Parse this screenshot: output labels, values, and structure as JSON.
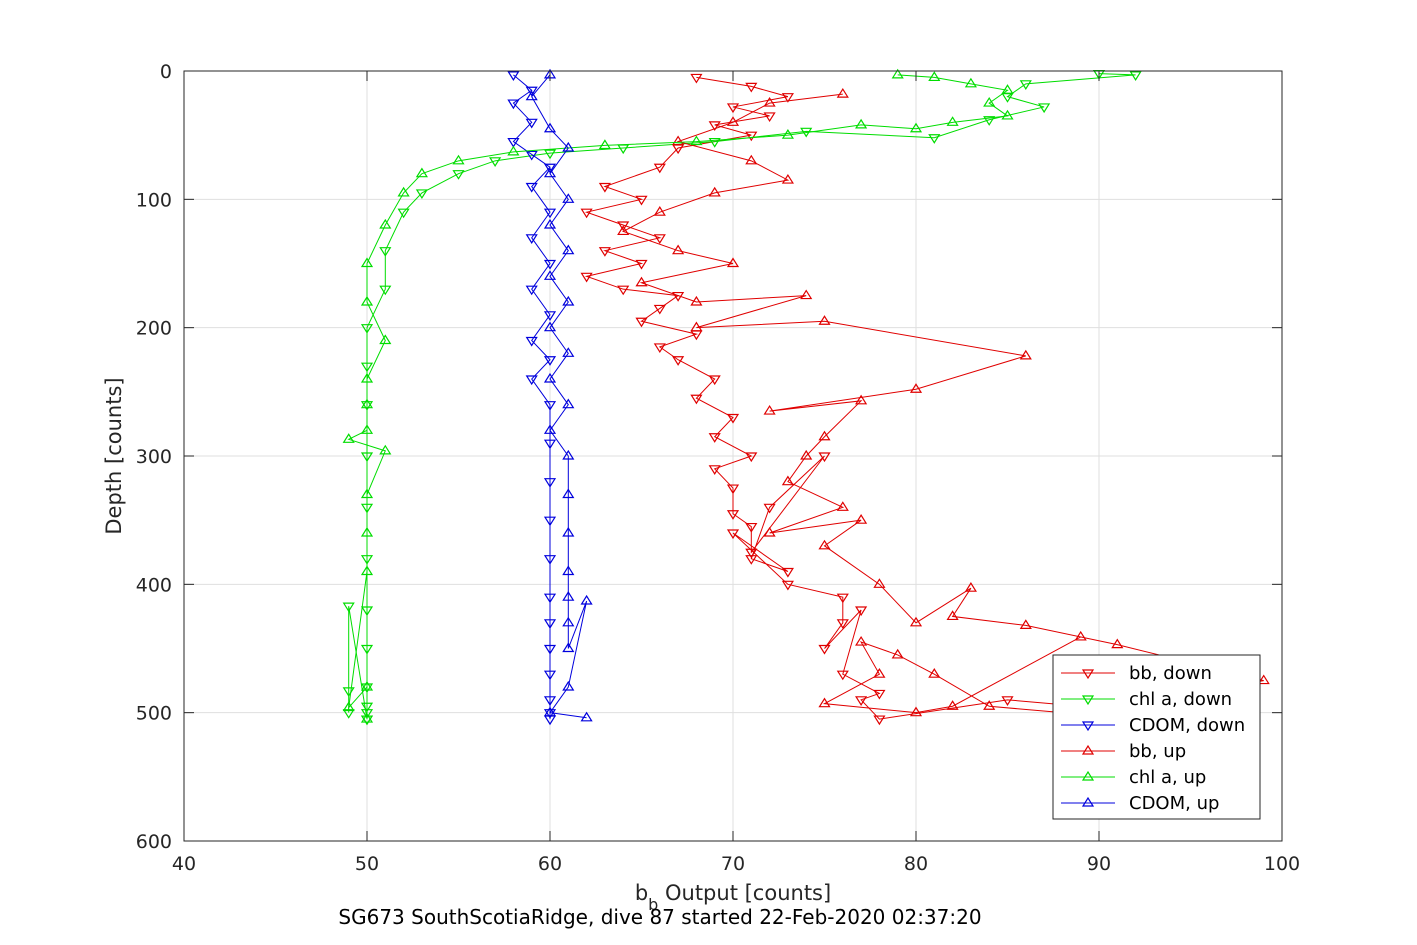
{
  "chart_data": {
    "type": "line",
    "xlabel_main": "b",
    "xlabel_sub": "b",
    "xlabel_rest": " Output [counts]",
    "ylabel": "Depth [counts]",
    "title": "SG673 SouthScotiaRidge, dive 87 started 22-Feb-2020 02:37:20",
    "xlim": [
      40,
      100
    ],
    "ylim": [
      0,
      600
    ],
    "y_reversed": true,
    "grid": true,
    "xticks": [
      "40",
      "50",
      "60",
      "70",
      "80",
      "90",
      "100"
    ],
    "yticks": [
      "0",
      "100",
      "200",
      "300",
      "400",
      "500",
      "600"
    ],
    "legend_position": "bottom-right",
    "series": [
      {
        "name": "bb, down",
        "color": "#e00000",
        "marker": "triangle-down",
        "x": [
          68,
          71,
          73,
          70,
          72,
          69,
          71,
          67,
          66,
          63,
          65,
          62,
          64,
          66,
          63,
          65,
          62,
          64,
          67,
          66,
          65,
          68,
          66,
          67,
          69,
          68,
          70,
          69,
          71,
          69,
          70,
          70,
          71,
          71,
          75,
          72,
          71,
          73,
          70,
          73,
          76,
          76,
          75,
          77,
          76,
          78,
          77,
          78,
          85,
          89
        ],
        "y": [
          5,
          12,
          20,
          28,
          35,
          42,
          50,
          60,
          75,
          90,
          100,
          110,
          120,
          130,
          140,
          150,
          160,
          170,
          175,
          185,
          195,
          205,
          215,
          225,
          240,
          255,
          270,
          285,
          300,
          310,
          325,
          345,
          355,
          375,
          300,
          340,
          380,
          390,
          360,
          400,
          410,
          430,
          450,
          420,
          470,
          485,
          490,
          505,
          490,
          495
        ]
      },
      {
        "name": "chl a, down",
        "color": "#00dd00",
        "marker": "triangle-down",
        "x": [
          90,
          92,
          86,
          85,
          87,
          84,
          81,
          74,
          69,
          64,
          60,
          57,
          55,
          53,
          52,
          51,
          51,
          50,
          50,
          50,
          50,
          50,
          50,
          50,
          50,
          50,
          50,
          50,
          50,
          50,
          49,
          49,
          49
        ],
        "y": [
          2,
          3,
          10,
          20,
          28,
          38,
          52,
          47,
          55,
          60,
          64,
          70,
          80,
          95,
          110,
          140,
          170,
          200,
          230,
          260,
          300,
          340,
          380,
          420,
          450,
          480,
          495,
          500,
          505,
          505,
          417,
          483,
          500
        ]
      },
      {
        "name": "CDOM, down",
        "color": "#0000dd",
        "marker": "triangle-down",
        "x": [
          58,
          59,
          58,
          59,
          58,
          59,
          60,
          59,
          60,
          59,
          60,
          59,
          60,
          59,
          60,
          59,
          60,
          60,
          60,
          60,
          60,
          60,
          60,
          60,
          60,
          60,
          60,
          60
        ],
        "y": [
          3,
          15,
          25,
          40,
          55,
          65,
          75,
          90,
          110,
          130,
          150,
          170,
          190,
          210,
          225,
          240,
          260,
          290,
          320,
          350,
          380,
          410,
          430,
          450,
          470,
          490,
          500,
          505
        ]
      },
      {
        "name": "bb, up",
        "color": "#e00000",
        "marker": "triangle-up",
        "x": [
          76,
          72,
          70,
          67,
          71,
          73,
          69,
          66,
          64,
          67,
          70,
          65,
          68,
          74,
          68,
          75,
          86,
          80,
          72,
          77,
          75,
          74,
          73,
          76,
          72,
          77,
          75,
          78,
          80,
          83,
          82,
          86,
          91,
          99,
          95,
          92,
          88,
          84,
          81,
          79,
          77,
          78,
          75,
          80,
          82,
          89
        ],
        "y": [
          18,
          25,
          40,
          55,
          70,
          85,
          95,
          110,
          125,
          140,
          150,
          165,
          180,
          175,
          200,
          195,
          222,
          248,
          265,
          257,
          285,
          300,
          320,
          340,
          360,
          350,
          370,
          400,
          430,
          403,
          425,
          432,
          447,
          475,
          485,
          490,
          500,
          495,
          470,
          455,
          445,
          470,
          493,
          500,
          495,
          441
        ]
      },
      {
        "name": "chl a, up",
        "color": "#00dd00",
        "marker": "triangle-up",
        "x": [
          79,
          81,
          83,
          85,
          84,
          85,
          82,
          80,
          77,
          73,
          68,
          63,
          58,
          55,
          53,
          52,
          51,
          50,
          50,
          51,
          50,
          50,
          50,
          49,
          51,
          50,
          50,
          50,
          49,
          50,
          50
        ],
        "y": [
          3,
          5,
          10,
          15,
          25,
          35,
          40,
          45,
          42,
          50,
          55,
          58,
          63,
          70,
          80,
          95,
          120,
          150,
          180,
          210,
          240,
          260,
          280,
          287,
          296,
          330,
          360,
          390,
          496,
          480,
          505
        ]
      },
      {
        "name": "CDOM, up",
        "color": "#0000dd",
        "marker": "triangle-up",
        "x": [
          60,
          59,
          60,
          61,
          60,
          61,
          60,
          61,
          60,
          61,
          60,
          61,
          60,
          61,
          60,
          61,
          61,
          61,
          61,
          61,
          61,
          61,
          62,
          61,
          60,
          62
        ],
        "y": [
          3,
          20,
          45,
          60,
          80,
          100,
          120,
          140,
          160,
          180,
          200,
          220,
          240,
          260,
          280,
          300,
          330,
          360,
          390,
          410,
          430,
          450,
          413,
          480,
          500,
          504
        ]
      }
    ]
  }
}
